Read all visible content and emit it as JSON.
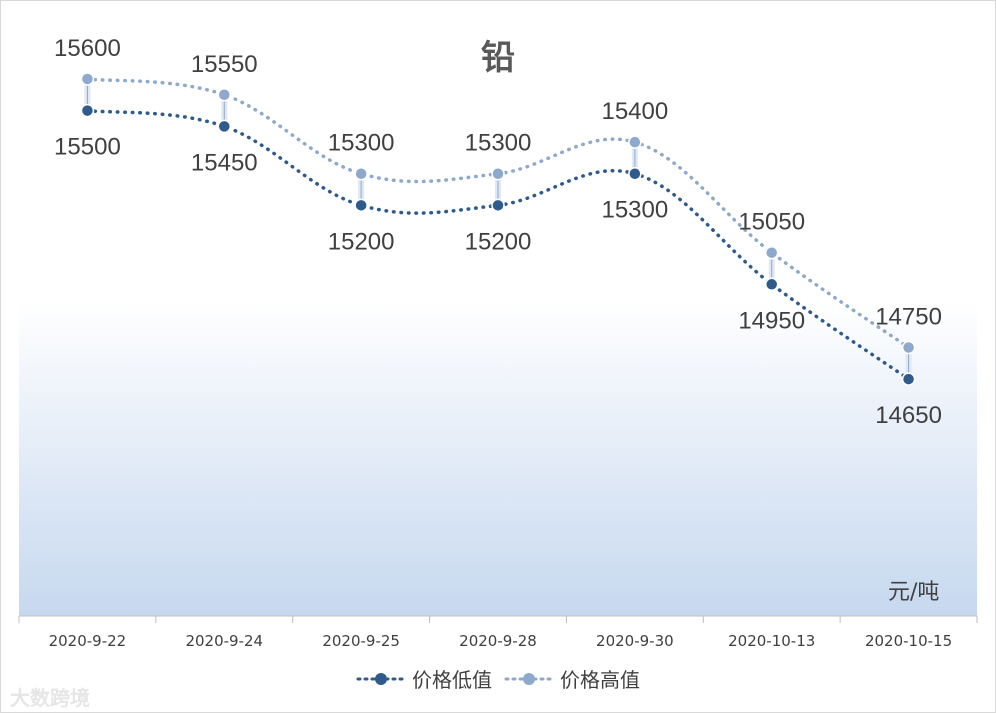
{
  "chart_data": {
    "type": "line",
    "title": "铅",
    "unit_label": "元/吨",
    "categories": [
      "2020-9-22",
      "2020-9-24",
      "2020-9-25",
      "2020-9-28",
      "2020-9-30",
      "2020-10-13",
      "2020-10-15"
    ],
    "series": [
      {
        "name": "价格低值",
        "values": [
          15500,
          15450,
          15200,
          15200,
          15300,
          14950,
          14650
        ],
        "color": "#2e5a8c"
      },
      {
        "name": "价格高值",
        "values": [
          15600,
          15550,
          15300,
          15300,
          15400,
          15050,
          14750
        ],
        "color": "#8ea9cb"
      }
    ],
    "ylim": [
      13900,
      15850
    ],
    "legend_position": "bottom",
    "grid": false
  },
  "watermark": "大数跨境"
}
